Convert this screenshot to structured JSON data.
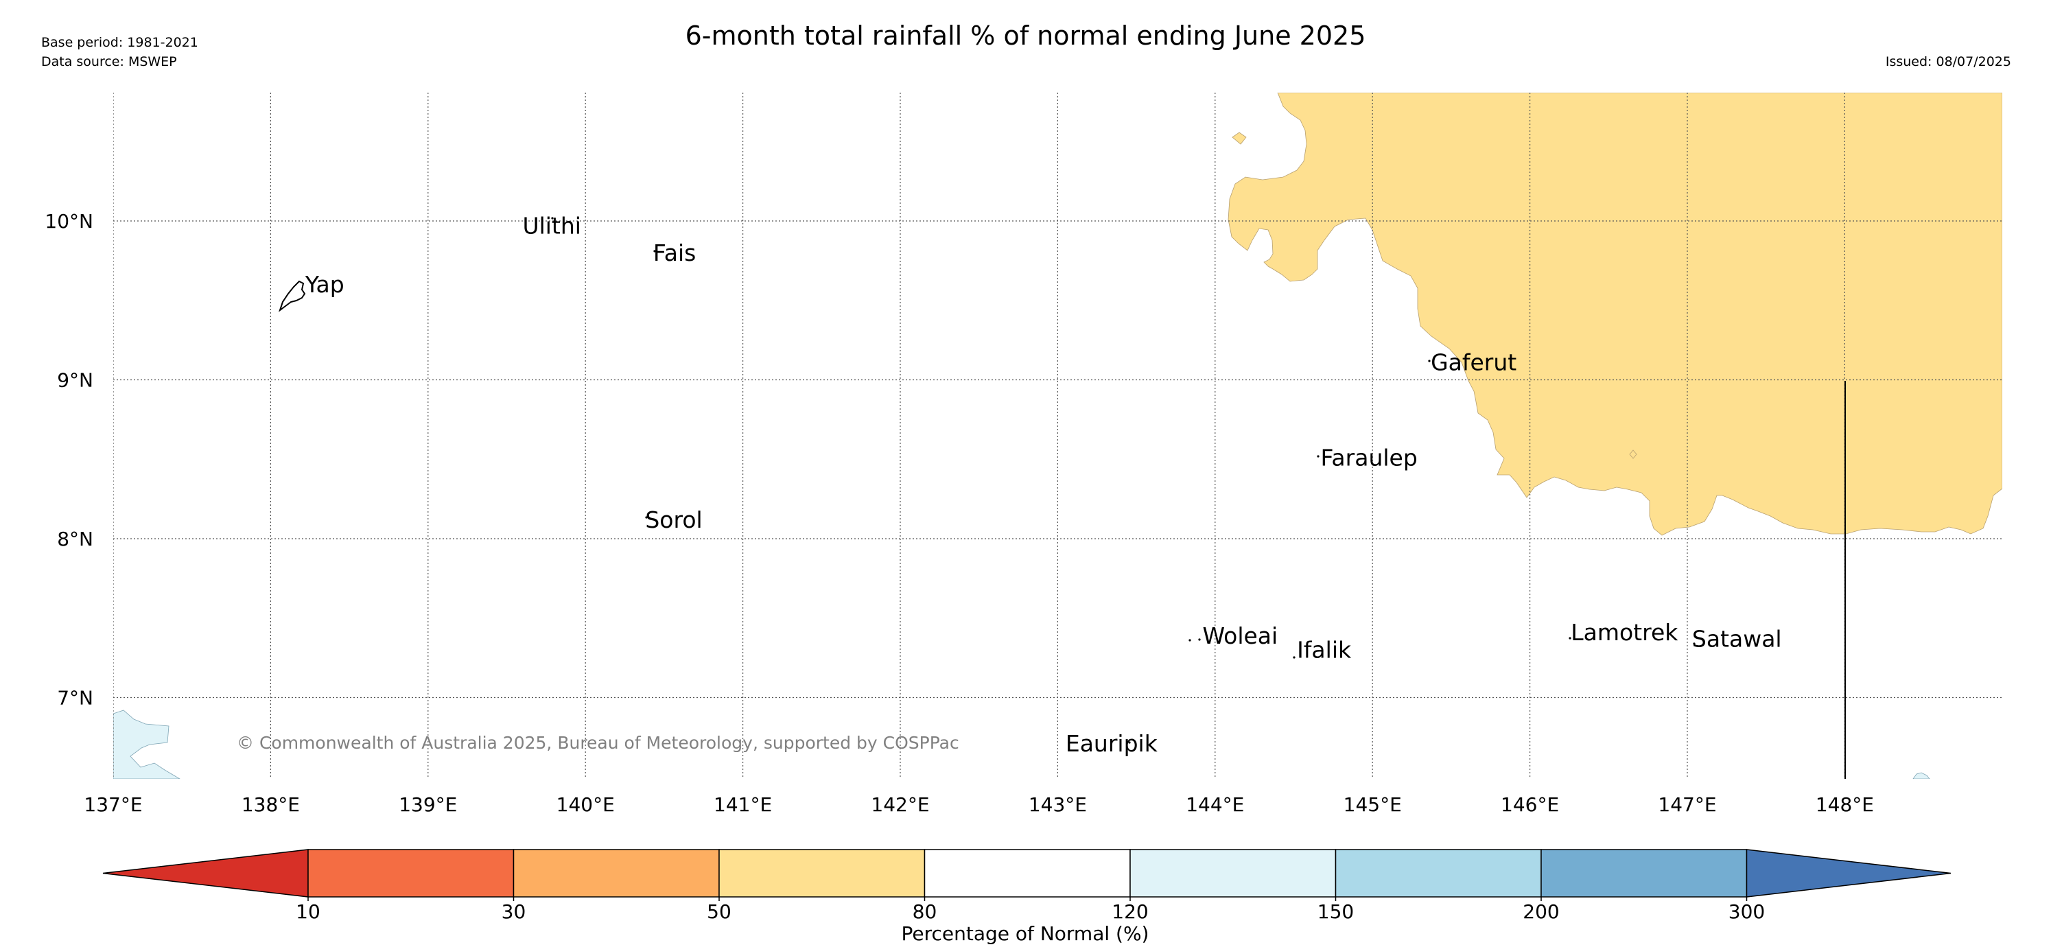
{
  "header": {
    "title": "6-month total rainfall % of normal ending June 2025",
    "base_period": "Base period: 1981-2021",
    "data_source": "Data source: MSWEP",
    "issued": "Issued: 08/07/2025"
  },
  "map": {
    "lon_ticks": [
      "137°E",
      "138°E",
      "139°E",
      "140°E",
      "141°E",
      "142°E",
      "143°E",
      "144°E",
      "145°E",
      "146°E",
      "147°E",
      "148°E"
    ],
    "lat_ticks": [
      "10°N",
      "9°N",
      "8°N",
      "7°N"
    ],
    "places": [
      {
        "name": "Yap",
        "lon": 138.22,
        "lat": 9.55
      },
      {
        "name": "Ulithi",
        "lon": 139.6,
        "lat": 9.92
      },
      {
        "name": "Fais",
        "lon": 140.43,
        "lat": 9.75
      },
      {
        "name": "Gaferut",
        "lon": 145.37,
        "lat": 9.06
      },
      {
        "name": "Faraulep",
        "lon": 144.67,
        "lat": 8.46
      },
      {
        "name": "Sorol",
        "lon": 140.38,
        "lat": 8.07
      },
      {
        "name": "Woleai",
        "lon": 143.92,
        "lat": 7.34
      },
      {
        "name": "Ifalik",
        "lon": 144.52,
        "lat": 7.25
      },
      {
        "name": "Lamotrek",
        "lon": 146.26,
        "lat": 7.36
      },
      {
        "name": "Satawal",
        "lon": 147.03,
        "lat": 7.32
      },
      {
        "name": "Eauripik",
        "lon": 143.05,
        "lat": 6.66
      }
    ],
    "copyright": "© Commonwealth of Australia 2025, Bureau of Meteorology, supported by COSPPac"
  },
  "legend": {
    "bounds": [
      "10",
      "30",
      "50",
      "80",
      "120",
      "150",
      "200",
      "300"
    ],
    "colors": [
      "#d73027",
      "#f46d43",
      "#fdae61",
      "#fee090",
      "#ffffff",
      "#e0f3f8",
      "#abd9e9",
      "#74add1",
      "#4575b4"
    ],
    "label": "Percentage of Normal (%)"
  }
}
